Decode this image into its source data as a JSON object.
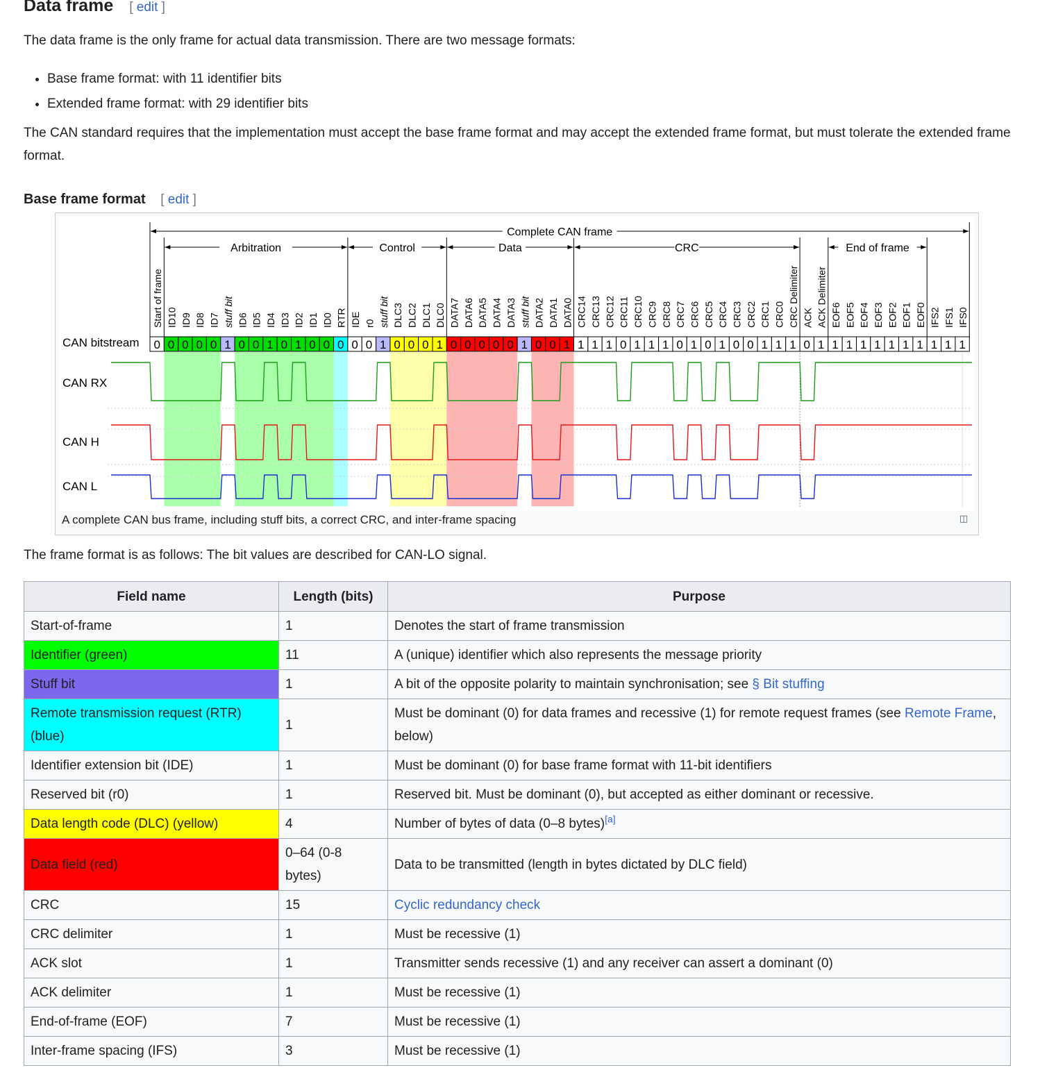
{
  "section": {
    "title": "Data frame",
    "edit_label": "edit",
    "edit_open": "[",
    "edit_close": "]"
  },
  "intro": "The data frame is the only frame for actual data transmission. There are two message formats:",
  "formats": [
    "Base frame format: with 11 identifier bits",
    "Extended frame format: with 29 identifier bits"
  ],
  "standard_text": "The CAN standard requires that the implementation must accept the base frame format and may accept the extended frame format, but must tolerate the extended frame format.",
  "subsection": {
    "title": "Base frame format",
    "edit_label": "edit"
  },
  "figure": {
    "caption": "A complete CAN bus frame, including stuff bits, a correct CRC, and inter-frame spacing",
    "magnify_icon": "magnify-clip-icon",
    "top_label": "Complete CAN frame",
    "group_labels": [
      "Arbitration",
      "Control",
      "Data",
      "CRC",
      "End of frame"
    ],
    "row_labels": [
      "CAN bitstream",
      "CAN RX",
      "CAN H",
      "CAN L"
    ],
    "bit_names": [
      "Start of frame",
      "ID10",
      "ID9",
      "ID8",
      "ID7",
      "stuff bit",
      "ID6",
      "ID5",
      "ID4",
      "ID3",
      "ID2",
      "ID1",
      "ID0",
      "RTR",
      "IDE",
      "r0",
      "stuff bit",
      "DLC3",
      "DLC2",
      "DLC1",
      "DLC0",
      "DATA7",
      "DATA6",
      "DATA5",
      "DATA4",
      "DATA3",
      "stuff bit",
      "DATA2",
      "DATA1",
      "DATA0",
      "CRC14",
      "CRC13",
      "CRC12",
      "CRC11",
      "CRC10",
      "CRC9",
      "CRC8",
      "CRC7",
      "CRC6",
      "CRC5",
      "CRC4",
      "CRC3",
      "CRC2",
      "CRC1",
      "CRC0",
      "CRC Delimiter",
      "ACK",
      "ACK Delimiter",
      "EOF6",
      "EOF5",
      "EOF4",
      "EOF3",
      "EOF2",
      "EOF1",
      "EOF0",
      "IFS2",
      "IFS1",
      "IFS0"
    ],
    "bits": [
      0,
      0,
      0,
      0,
      0,
      1,
      0,
      0,
      1,
      0,
      1,
      0,
      0,
      0,
      0,
      0,
      1,
      0,
      0,
      0,
      1,
      0,
      0,
      0,
      0,
      0,
      1,
      0,
      0,
      1,
      1,
      1,
      1,
      0,
      1,
      1,
      1,
      0,
      1,
      0,
      1,
      0,
      0,
      1,
      1,
      1,
      0,
      1,
      1,
      1,
      1,
      1,
      1,
      1,
      1,
      1,
      1,
      1
    ],
    "bit_colors": [
      "w",
      "g",
      "g",
      "g",
      "g",
      "p",
      "g",
      "g",
      "g",
      "g",
      "g",
      "g",
      "g",
      "c",
      "w",
      "w",
      "p",
      "y",
      "y",
      "y",
      "y",
      "r",
      "r",
      "r",
      "r",
      "r",
      "p",
      "r",
      "r",
      "r",
      "w",
      "w",
      "w",
      "w",
      "w",
      "w",
      "w",
      "w",
      "w",
      "w",
      "w",
      "w",
      "w",
      "w",
      "w",
      "w",
      "w",
      "w",
      "w",
      "w",
      "w",
      "w",
      "w",
      "w",
      "w",
      "w",
      "w",
      "w"
    ],
    "colors": {
      "g": "#00dd00",
      "p": "#b9b9ff",
      "c": "#00ffff",
      "y": "#ffff00",
      "r": "#ff0000",
      "w": "#ffffff"
    },
    "band_colors": {
      "g": "#aaffaa",
      "c": "#aaffff",
      "y": "#ffffaa",
      "r": "#ffb4b4"
    },
    "trace_colors": {
      "rx": "#1a9e1a",
      "h": "#e01818",
      "l": "#1c2fd0"
    }
  },
  "format_note": "The frame format is as follows: The bit values are described for CAN-LO signal.",
  "table": {
    "headers": [
      "Field name",
      "Length (bits)",
      "Purpose"
    ],
    "rows": [
      {
        "name": "Start-of-frame",
        "len": "1",
        "purpose": "Denotes the start of frame transmission",
        "bg": ""
      },
      {
        "name": "Identifier (green)",
        "len": "11",
        "purpose": "A (unique) identifier which also represents the message priority",
        "bg": "#00ff00"
      },
      {
        "name": "Stuff bit",
        "len": "1",
        "purpose": "A bit of the opposite polarity to maintain synchronisation; see ",
        "link": "§ Bit stuffing",
        "bg": "#7b68ee"
      },
      {
        "name": "Remote transmission request (RTR) (blue)",
        "len": "1",
        "purpose": "Must be dominant (0) for data frames and recessive (1) for remote request frames (see ",
        "link": "Remote Frame",
        "after": ", below)",
        "bg": "#00ffff",
        "tall": true
      },
      {
        "name": "Identifier extension bit (IDE)",
        "len": "1",
        "purpose": "Must be dominant (0) for base frame format with 11-bit identifiers",
        "bg": ""
      },
      {
        "name": "Reserved bit (r0)",
        "len": "1",
        "purpose": "Reserved bit. Must be dominant (0), but accepted as either dominant or recessive.",
        "bg": ""
      },
      {
        "name": "Data length code (DLC) (yellow)",
        "len": "4",
        "purpose": "Number of bytes of data (0–8 bytes)",
        "note": "[a]",
        "bg": "#ffff00"
      },
      {
        "name": "Data field (red)",
        "len": "0–64 (0-8 bytes)",
        "purpose": "Data to be transmitted (length in bytes dictated by DLC field)",
        "bg": "#ff0000",
        "tall": true
      },
      {
        "name": "CRC",
        "len": "15",
        "purpose": "",
        "link": "Cyclic redundancy check",
        "bg": ""
      },
      {
        "name": "CRC delimiter",
        "len": "1",
        "purpose": "Must be recessive (1)",
        "bg": ""
      },
      {
        "name": "ACK slot",
        "len": "1",
        "purpose": "Transmitter sends recessive (1) and any receiver can assert a dominant (0)",
        "bg": ""
      },
      {
        "name": "ACK delimiter",
        "len": "1",
        "purpose": "Must be recessive (1)",
        "bg": ""
      },
      {
        "name": "End-of-frame (EOF)",
        "len": "7",
        "purpose": "Must be recessive (1)",
        "bg": ""
      },
      {
        "name": "Inter-frame spacing (IFS)",
        "len": "3",
        "purpose": "Must be recessive (1)",
        "bg": ""
      }
    ]
  }
}
